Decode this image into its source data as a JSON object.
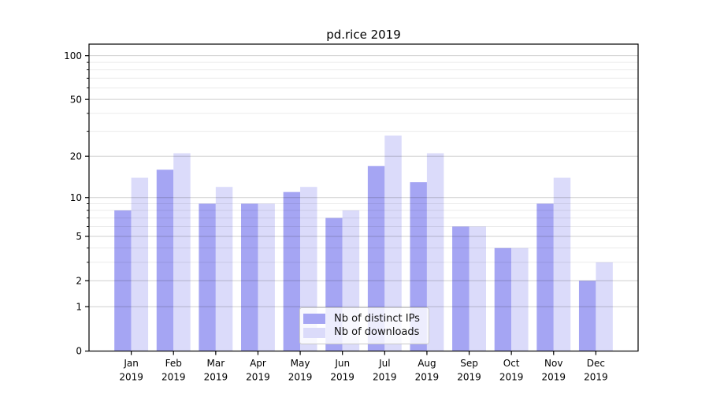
{
  "chart_data": {
    "type": "bar",
    "title": "pd.rice 2019",
    "x_labels": [
      [
        "Jan",
        "2019"
      ],
      [
        "Feb",
        "2019"
      ],
      [
        "Mar",
        "2019"
      ],
      [
        "Apr",
        "2019"
      ],
      [
        "May",
        "2019"
      ],
      [
        "Jun",
        "2019"
      ],
      [
        "Jul",
        "2019"
      ],
      [
        "Aug",
        "2019"
      ],
      [
        "Sep",
        "2019"
      ],
      [
        "Oct",
        "2019"
      ],
      [
        "Nov",
        "2019"
      ],
      [
        "Dec",
        "2019"
      ]
    ],
    "series": [
      {
        "name": "Nb of distinct IPs",
        "color": "#a5a5f3",
        "values": [
          8,
          16,
          9,
          9,
          11,
          7,
          17,
          13,
          6,
          4,
          9,
          2
        ]
      },
      {
        "name": "Nb of downloads",
        "color": "#dbdbfa",
        "values": [
          14,
          21,
          12,
          9,
          12,
          8,
          28,
          21,
          6,
          4,
          14,
          3
        ]
      }
    ],
    "yscale": "log1p",
    "ylim": [
      0,
      120
    ],
    "y_major_ticks": [
      0,
      1,
      2,
      5,
      10,
      20,
      50,
      100
    ],
    "y_minor_ticks": [
      3,
      4,
      6,
      7,
      8,
      9,
      30,
      40,
      60,
      70,
      80,
      90
    ],
    "grid": true,
    "legend_position": "lower center",
    "colors": {
      "spine": "#000000",
      "major_grid": "rgba(0,0,0,0.19)",
      "minor_grid": "rgba(0,0,0,0.08)",
      "text": "#000000"
    }
  }
}
